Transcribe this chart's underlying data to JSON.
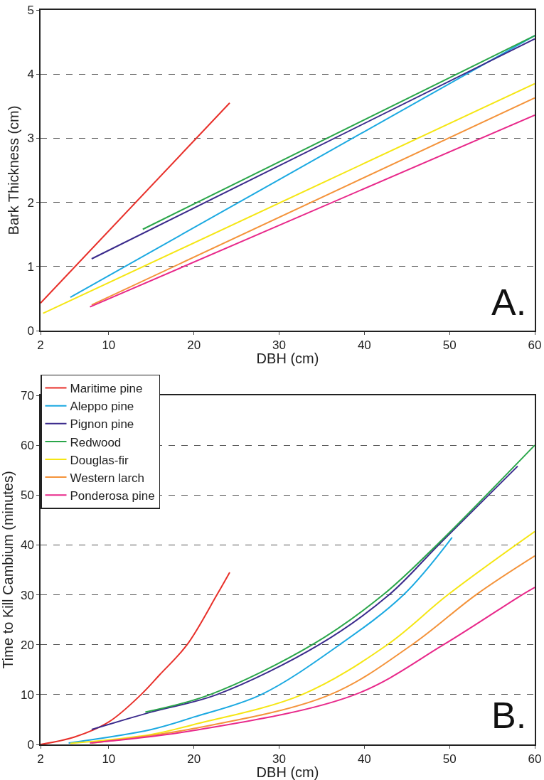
{
  "chart_data": [
    {
      "type": "line",
      "xlabel": "DBH (cm)",
      "ylabel": "Bark Thickness (cm)",
      "annotations": [
        "A."
      ],
      "xlim": [
        2,
        60
      ],
      "xticks": [
        2,
        10,
        20,
        30,
        40,
        50,
        60
      ],
      "ylim": [
        0,
        5
      ],
      "yticks": [
        0,
        1,
        2,
        3,
        4,
        5
      ],
      "grid": "y",
      "legend": false,
      "marker": "none",
      "line_style": "solid",
      "series": [
        {
          "color": "#e8302a",
          "x": [
            2,
            24.2
          ],
          "values": [
            0.43,
            3.55
          ]
        },
        {
          "color": "#1ba9e1",
          "x": [
            5.5,
            60
          ],
          "values": [
            0.52,
            4.6
          ]
        },
        {
          "color": "#3a2a8c",
          "x": [
            8,
            60
          ],
          "values": [
            1.12,
            4.55
          ]
        },
        {
          "color": "#2aa64a",
          "x": [
            14,
            60
          ],
          "values": [
            1.58,
            4.6
          ]
        },
        {
          "color": "#f5e614",
          "x": [
            2.3,
            60
          ],
          "values": [
            0.27,
            3.85
          ]
        },
        {
          "color": "#f4933a",
          "x": [
            8,
            60
          ],
          "values": [
            0.4,
            3.63
          ]
        },
        {
          "color": "#e8288a",
          "x": [
            7.8,
            60
          ],
          "values": [
            0.37,
            3.36
          ]
        }
      ]
    },
    {
      "type": "line",
      "xlabel": "DBH (cm)",
      "ylabel": "Time to Kill Cambium (minutes)",
      "annotations": [
        "B."
      ],
      "xlim": [
        2,
        60
      ],
      "xticks": [
        2,
        10,
        20,
        30,
        40,
        50,
        60
      ],
      "ylim": [
        0,
        70
      ],
      "yticks": [
        0,
        10,
        20,
        30,
        40,
        50,
        60,
        70
      ],
      "grid": "y",
      "legend": "top left",
      "marker": "none",
      "line_style": "solid",
      "series": [
        {
          "name": "Maritime pine",
          "color": "#e8302a",
          "x": [
            2,
            6,
            10,
            13.8,
            16,
            19.2,
            22.7,
            24.2
          ],
          "values": [
            0,
            1.5,
            4.5,
            10,
            14,
            20,
            30,
            34.5
          ]
        },
        {
          "name": "Aleppo pine",
          "color": "#1ba9e1",
          "x": [
            5.3,
            15,
            20,
            27.9,
            37.1,
            44.6,
            50.3
          ],
          "values": [
            0.3,
            3,
            5.5,
            10,
            20,
            30,
            41.5
          ]
        },
        {
          "name": "Pignon pine",
          "color": "#3a2a8c",
          "x": [
            8,
            15,
            22.7,
            34.7,
            42.9,
            48.7,
            58
          ],
          "values": [
            3,
            6.5,
            10,
            20,
            30,
            40,
            55.8
          ]
        },
        {
          "name": "Redwood",
          "color": "#2aa64a",
          "x": [
            14.3,
            21.9,
            33.9,
            42.2,
            48.5,
            60
          ],
          "values": [
            6.5,
            10,
            20,
            30,
            40,
            60
          ]
        },
        {
          "name": "Douglas-fir",
          "color": "#f5e614",
          "x": [
            5.5,
            15,
            20,
            32.7,
            42.7,
            49.8,
            60
          ],
          "values": [
            0.2,
            2,
            4,
            10,
            20,
            30,
            42.7
          ]
        },
        {
          "name": "Western larch",
          "color": "#f4933a",
          "x": [
            8,
            20,
            36,
            45.6,
            53.1,
            60
          ],
          "values": [
            0.3,
            3.2,
            10,
            20,
            30,
            37.8
          ]
        },
        {
          "name": "Ponderosa pine",
          "color": "#e8288a",
          "x": [
            7.8,
            20,
            38.9,
            49.3,
            58.5,
            60
          ],
          "values": [
            0.3,
            2.8,
            10,
            20,
            30,
            31.5
          ]
        }
      ]
    }
  ]
}
